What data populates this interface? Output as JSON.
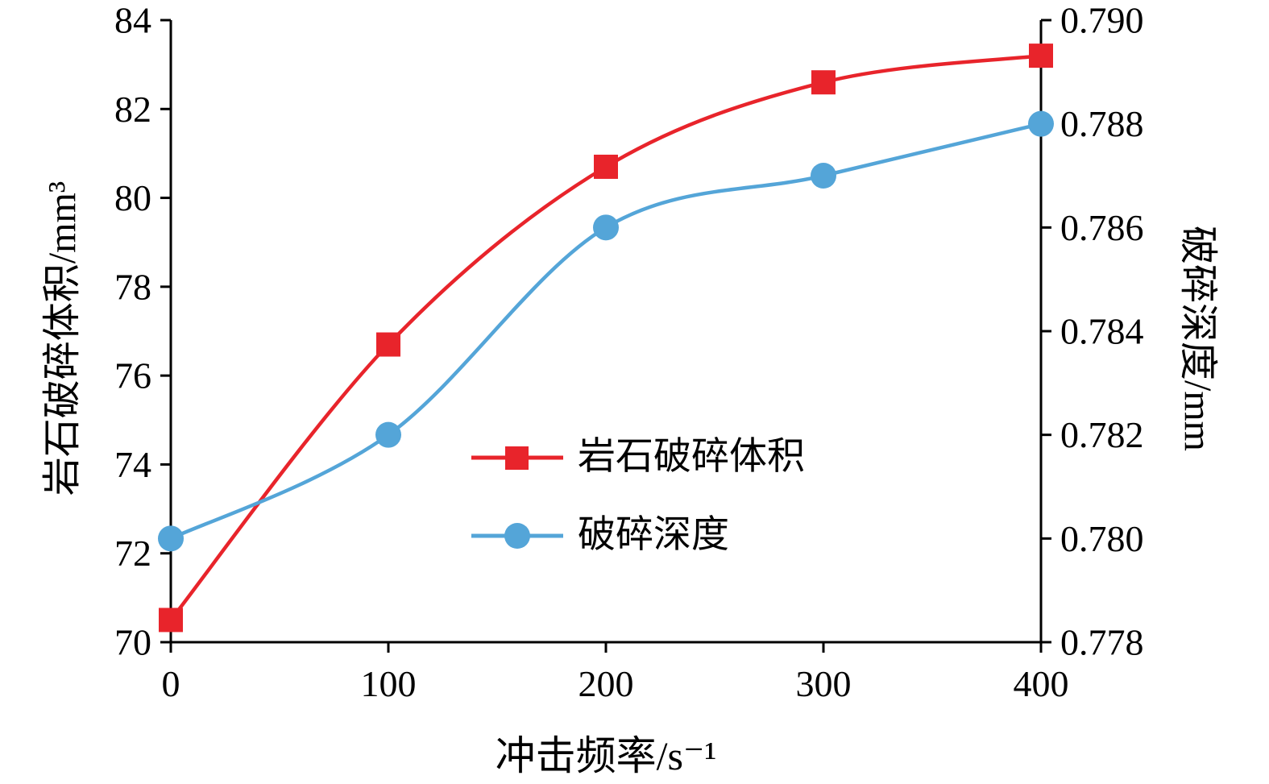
{
  "chart_data": {
    "type": "line",
    "x": [
      0,
      100,
      200,
      300,
      400
    ],
    "x_range": [
      0,
      400
    ],
    "x_ticks": [
      "0",
      "100",
      "200",
      "300",
      "400"
    ],
    "xlabel": "冲击频率/s⁻¹",
    "ylabel_left": "岩石破碎体积/mm³",
    "ylabel_right": "破碎深度/mm",
    "y_left_range": [
      70,
      84
    ],
    "y_left_ticks": [
      "70",
      "72",
      "74",
      "76",
      "78",
      "80",
      "82",
      "84"
    ],
    "y_right_range": [
      0.778,
      0.79
    ],
    "y_right_ticks": [
      "0.778",
      "0.780",
      "0.782",
      "0.784",
      "0.786",
      "0.788",
      "0.790"
    ],
    "grid": false,
    "legend_position": "center-inside",
    "series": [
      {
        "name": "岩石破碎体积",
        "axis": "left",
        "marker": "square",
        "color": "#e8242b",
        "values": [
          70.5,
          76.7,
          80.7,
          82.6,
          83.2
        ]
      },
      {
        "name": "破碎深度",
        "axis": "right",
        "marker": "circle",
        "color": "#54a5d8",
        "values": [
          0.78,
          0.782,
          0.786,
          0.787,
          0.788
        ]
      }
    ],
    "axis_color": "#000000",
    "background_color": "#ffffff"
  }
}
